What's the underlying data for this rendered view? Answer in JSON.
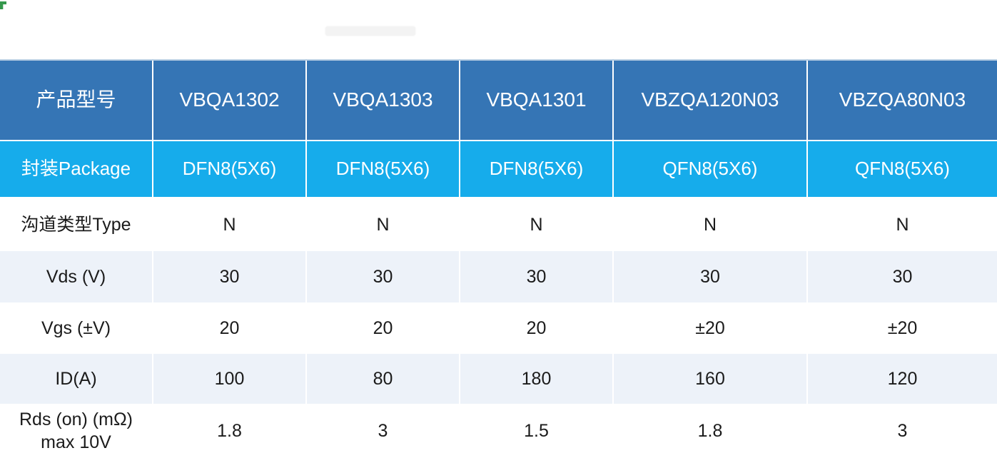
{
  "decorations": {
    "corner_mark_color": "#35984c",
    "watermark_note": "faint illegible light-gray smudge near top centre"
  },
  "table": {
    "colors": {
      "header_bg": "#3575b5",
      "package_row_bg": "#16aceb",
      "alt_row_bg": "#edf2f9",
      "header_text": "#ffffff",
      "body_text": "#1b1b1b",
      "grid_line": "#ffffff"
    },
    "header": {
      "cells": [
        "产品型号",
        "VBQA1302",
        "VBQA1303",
        "VBQA1301",
        "VBZQA120N03",
        "VBZQA80N03"
      ]
    },
    "rows": [
      {
        "label": "封装Package",
        "values": [
          "DFN8(5X6)",
          "DFN8(5X6)",
          "DFN8(5X6)",
          "QFN8(5X6)",
          "QFN8(5X6)"
        ]
      },
      {
        "label": "沟道类型Type",
        "values": [
          "N",
          "N",
          "N",
          "N",
          "N"
        ]
      },
      {
        "label": "Vds (V)",
        "values": [
          "30",
          "30",
          "30",
          "30",
          "30"
        ]
      },
      {
        "label": "Vgs (±V)",
        "values": [
          "20",
          "20",
          "20",
          "±20",
          "±20"
        ]
      },
      {
        "label": "ID(A)",
        "values": [
          "100",
          "80",
          "180",
          "160",
          "120"
        ]
      },
      {
        "label": "Rds (on) (mΩ) max 10V",
        "values": [
          "1.8",
          "3",
          "1.5",
          "1.8",
          "3"
        ]
      }
    ]
  }
}
